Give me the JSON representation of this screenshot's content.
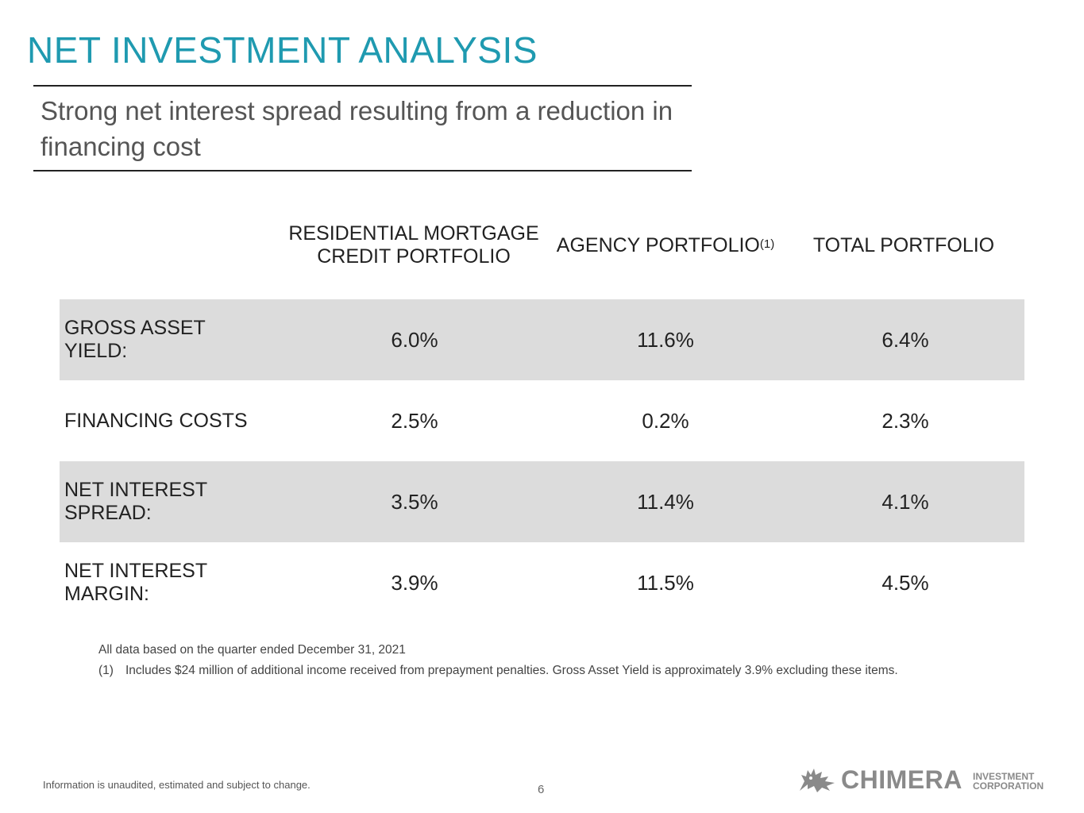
{
  "page": {
    "title": "NET INVESTMENT ANALYSIS",
    "subtitle": "Strong net interest spread resulting from a reduction in financing cost"
  },
  "table": {
    "columns": [
      {
        "label": "RESIDENTIAL MORTGAGE CREDIT PORTFOLIO",
        "footnote": ""
      },
      {
        "label": "AGENCY PORTFOLIO",
        "footnote": "(1)"
      },
      {
        "label": "TOTAL PORTFOLIO",
        "footnote": ""
      }
    ],
    "rows": [
      {
        "label": "GROSS ASSET YIELD:",
        "values": [
          "6.0%",
          "11.6%",
          "6.4%"
        ]
      },
      {
        "label": "FINANCING COSTS",
        "values": [
          "2.5%",
          "0.2%",
          "2.3%"
        ]
      },
      {
        "label": "NET INTEREST SPREAD:",
        "values": [
          "3.5%",
          "11.4%",
          "4.1%"
        ]
      },
      {
        "label": "NET INTEREST MARGIN:",
        "values": [
          "3.9%",
          "11.5%",
          "4.5%"
        ]
      }
    ]
  },
  "notes": {
    "basis": "All data based on the quarter ended December 31, 2021",
    "footnote_marker": "(1)",
    "footnote_text": "Includes $24 million of additional income received from prepayment penalties. Gross Asset Yield is approximately 3.9% excluding these items."
  },
  "footer": {
    "disclaimer": "Information is unaudited, estimated and subject to change.",
    "page_number": "6",
    "logo_word": "CHIMERA",
    "logo_sub_line1": "INVESTMENT",
    "logo_sub_line2": "CORPORATION"
  },
  "colors": {
    "title": "#1f9ab0",
    "row_shade": "#dcdcdc",
    "logo": "#8a8a8a"
  }
}
